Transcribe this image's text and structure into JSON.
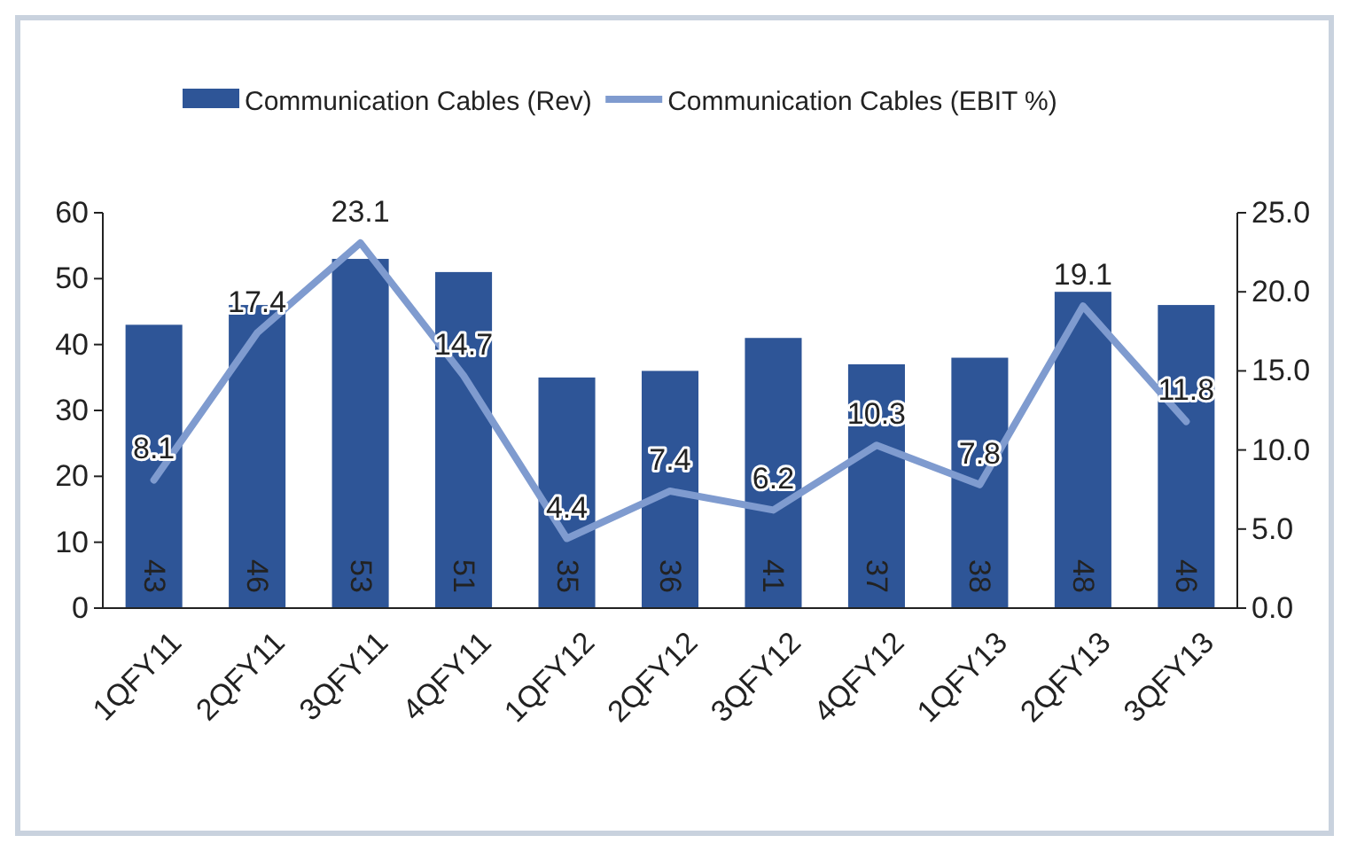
{
  "chart_data": {
    "type": "bar",
    "categories": [
      "1QFY11",
      "2QFY11",
      "3QFY11",
      "4QFY11",
      "1QFY12",
      "2QFY12",
      "3QFY12",
      "4QFY12",
      "1QFY13",
      "2QFY13",
      "3QFY13"
    ],
    "series": [
      {
        "name": "Communication Cables (Rev)",
        "color": "#2e5597",
        "values": [
          43,
          46,
          53,
          51,
          35,
          36,
          41,
          37,
          38,
          48,
          46
        ]
      },
      {
        "name": "Communication Cables (EBIT %)",
        "type": "line",
        "axis": "y2",
        "color": "#7f9bcf",
        "values": [
          8.1,
          17.4,
          23.1,
          14.7,
          4.4,
          7.4,
          6.2,
          10.3,
          7.8,
          19.1,
          11.8
        ]
      }
    ],
    "ylim": [
      0,
      60
    ],
    "yticks": [
      0,
      10,
      20,
      30,
      40,
      50,
      60
    ],
    "y2lim": [
      0,
      25
    ],
    "y2ticks": [
      {
        "value": 0,
        "label": "0.0"
      },
      {
        "value": 5,
        "label": "5.0"
      },
      {
        "value": 10,
        "label": "10.0"
      },
      {
        "value": 15,
        "label": "15.0"
      },
      {
        "value": 20,
        "label": "20.0"
      },
      {
        "value": 25,
        "label": "25.0"
      }
    ],
    "data_labels": true,
    "legend": "top",
    "grid": false,
    "marker": "none",
    "line_style": "solid"
  }
}
